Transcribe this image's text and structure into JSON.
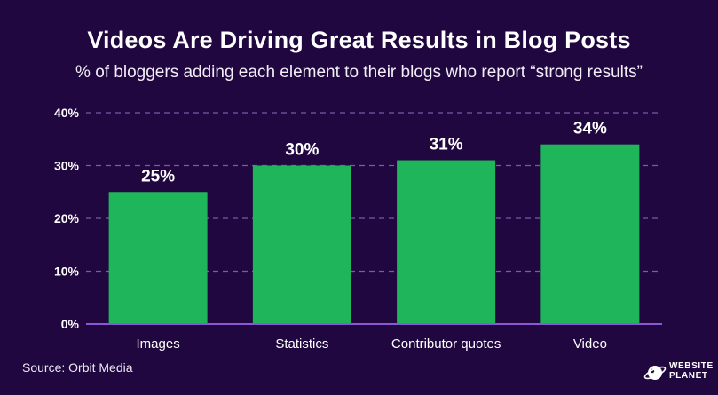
{
  "title": "Videos Are Driving Great Results in Blog Posts",
  "subtitle": "% of bloggers adding each element to their blogs who report “strong results”",
  "source": "Source: Orbit Media",
  "logo": {
    "line1": "WEBSITE",
    "line2": "PLANET",
    "icon": "planet-icon"
  },
  "colors": {
    "background": "#21073f",
    "bar": "#1fb65b",
    "axis": "#8b57d6",
    "grid": "#7b5aa8",
    "text": "#ffffff"
  },
  "chart_data": {
    "type": "bar",
    "categories": [
      "Images",
      "Statistics",
      "Contributor quotes",
      "Video"
    ],
    "values": [
      25,
      30,
      31,
      34
    ],
    "data_labels": [
      "25%",
      "30%",
      "31%",
      "34%"
    ],
    "yticks": [
      "0%",
      "10%",
      "20%",
      "30%",
      "40%"
    ],
    "ytick_values": [
      0,
      10,
      20,
      30,
      40
    ],
    "ylim": [
      0,
      40
    ],
    "title": "Videos Are Driving Great Results in Blog Posts",
    "subtitle": "% of bloggers adding each element to their blogs who report “strong results”",
    "xlabel": "",
    "ylabel": "",
    "grid": true,
    "legend": "none"
  }
}
